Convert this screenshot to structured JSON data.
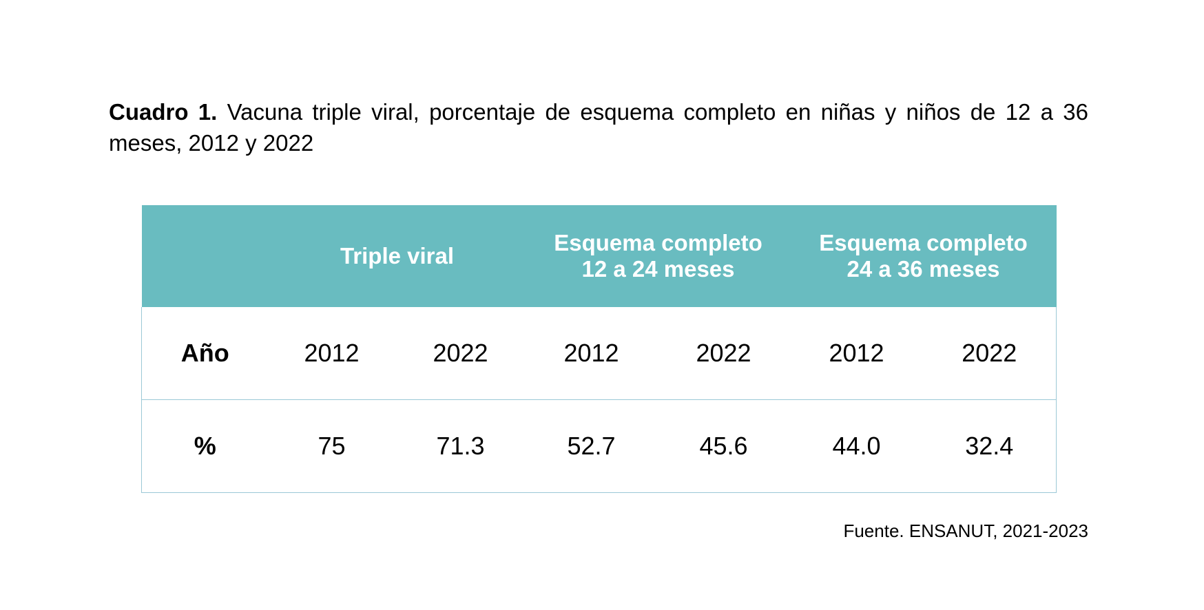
{
  "caption": {
    "bold_prefix": "Cuadro 1.",
    "text": "Vacuna triple viral, porcentaje de esquema completo en niñas y niños de 12 a 36 meses, 2012 y 2022"
  },
  "table": {
    "group_headers": [
      "",
      "Triple viral",
      "Esquema completo\n12 a 24 meses",
      "Esquema completo\n24 a 36 meses"
    ],
    "year_row": {
      "label": "Año",
      "values": [
        "2012",
        "2022",
        "2012",
        "2022",
        "2012",
        "2022"
      ]
    },
    "percent_row": {
      "label": "%",
      "values": [
        "75",
        "71.3",
        "52.7",
        "45.6",
        "44.0",
        "32.4"
      ]
    },
    "colors": {
      "header_background": "#69bcc0",
      "header_text": "#ffffff",
      "border": "#9bc8d6"
    }
  },
  "source": "Fuente. ENSANUT, 2021-2023"
}
